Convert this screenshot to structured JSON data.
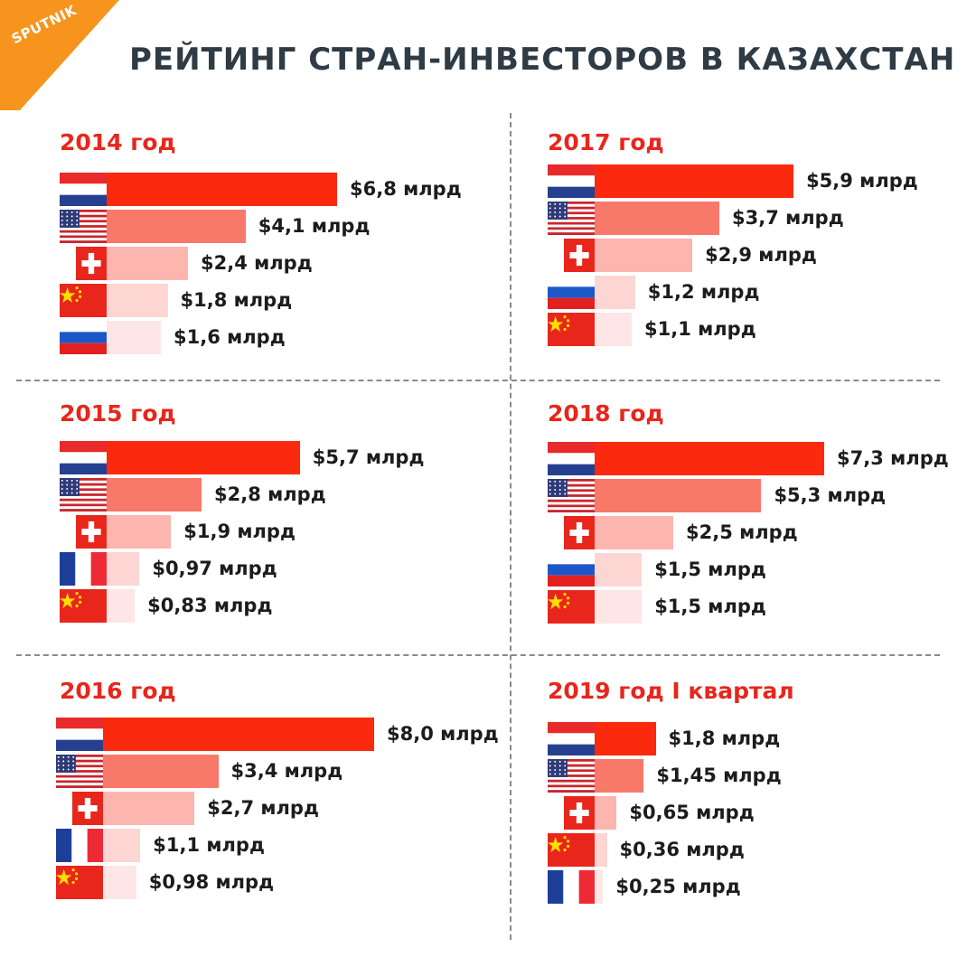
{
  "logo": {
    "text": "SPUTNIK",
    "color": "#f7941d"
  },
  "title": "РЕЙТИНГ СТРАН-ИНВЕСТОРОВ В КАЗАХСТАН",
  "colors": {
    "accent": "#e8261c",
    "rank": [
      "#fb2a0e",
      "#f8786a",
      "#fcb5af",
      "#fdd5d3",
      "#fde6e5"
    ]
  },
  "chart_data": [
    {
      "type": "bar",
      "title": "2014 год",
      "unit": "млрд $",
      "categories": [
        "Netherlands",
        "USA",
        "Switzerland",
        "China",
        "Russia"
      ],
      "values": [
        6.8,
        4.1,
        2.4,
        1.8,
        1.6
      ],
      "labels": [
        "$6,8 млрд",
        "$4,1 млрд",
        "$2,4 млрд",
        "$1,8 млрд",
        "$1,6 млрд"
      ],
      "flags": [
        "netherlands",
        "usa",
        "switzerland",
        "china",
        "russia"
      ]
    },
    {
      "type": "bar",
      "title": "2015 год",
      "unit": "млрд $",
      "categories": [
        "Netherlands",
        "USA",
        "Switzerland",
        "France",
        "China"
      ],
      "values": [
        5.7,
        2.8,
        1.9,
        0.97,
        0.83
      ],
      "labels": [
        "$5,7 млрд",
        "$2,8 млрд",
        "$1,9 млрд",
        "$0,97 млрд",
        "$0,83 млрд"
      ],
      "flags": [
        "netherlands",
        "usa",
        "switzerland",
        "france",
        "china"
      ]
    },
    {
      "type": "bar",
      "title": "2016 год",
      "unit": "млрд $",
      "categories": [
        "Netherlands",
        "USA",
        "Switzerland",
        "France",
        "China"
      ],
      "values": [
        8.0,
        3.4,
        2.7,
        1.1,
        0.98
      ],
      "labels": [
        "$8,0 млрд",
        "$3,4 млрд",
        "$2,7 млрд",
        "$1,1 млрд",
        "$0,98 млрд"
      ],
      "flags": [
        "netherlands",
        "usa",
        "switzerland",
        "france",
        "china"
      ]
    },
    {
      "type": "bar",
      "title": "2017 год",
      "unit": "млрд $",
      "categories": [
        "Netherlands",
        "USA",
        "Switzerland",
        "Russia",
        "China"
      ],
      "values": [
        5.9,
        3.7,
        2.9,
        1.2,
        1.1
      ],
      "labels": [
        "$5,9 млрд",
        "$3,7 млрд",
        "$2,9 млрд",
        "$1,2 млрд",
        "$1,1 млрд"
      ],
      "flags": [
        "netherlands",
        "usa",
        "switzerland",
        "russia",
        "china"
      ]
    },
    {
      "type": "bar",
      "title": "2018 год",
      "unit": "млрд $",
      "categories": [
        "Netherlands",
        "USA",
        "Switzerland",
        "Russia",
        "China"
      ],
      "values": [
        7.3,
        5.3,
        2.5,
        1.5,
        1.5
      ],
      "labels": [
        "$7,3 млрд",
        "$5,3 млрд",
        "$2,5 млрд",
        "$1,5 млрд",
        "$1,5 млрд"
      ],
      "flags": [
        "netherlands",
        "usa",
        "switzerland",
        "russia",
        "china"
      ]
    },
    {
      "type": "bar",
      "title": "2019 год I квартал",
      "unit": "млрд $",
      "categories": [
        "Netherlands",
        "USA",
        "Switzerland",
        "China",
        "France"
      ],
      "values": [
        1.8,
        1.45,
        0.65,
        0.36,
        0.25
      ],
      "labels": [
        "$1,8 млрд",
        "$1,45 млрд",
        "$0,65 млрд",
        "$0,36 млрд",
        "$0,25 млрд"
      ],
      "flags": [
        "netherlands",
        "usa",
        "switzerland",
        "china",
        "france"
      ]
    }
  ]
}
